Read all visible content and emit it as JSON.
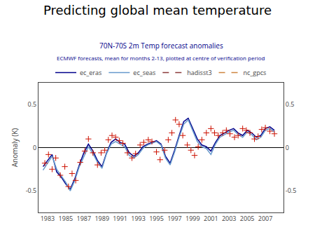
{
  "chart_data": {
    "type": "line",
    "title": "Predicting global mean temperature",
    "subtitle": [
      "70N-70S 2m Temp forecast anomalies",
      "ECMWF forecasts, mean for months 2-13, plotted at centre of verification period"
    ],
    "ylabel": "Anomaly (K)",
    "xlim": [
      1982.0,
      2009.0
    ],
    "xticks": [
      1983,
      1985,
      1987,
      1989,
      1991,
      1993,
      1995,
      1997,
      1999,
      2001,
      2003,
      2005,
      2007
    ],
    "ylim": [
      -0.75,
      0.75
    ],
    "yticks": [
      -0.5,
      0,
      0.5
    ],
    "y2lim": [
      -0.75,
      0.75
    ],
    "y2ticks": [
      -0.5,
      0,
      0.5
    ],
    "grid": false,
    "legend": "top",
    "series": [
      {
        "name": "ec_eras",
        "color": "#00008B",
        "type": "line",
        "line_style": "solid",
        "x": [
          1982.5,
          1983.0,
          1983.5,
          1984.0,
          1984.5,
          1985.0,
          1985.5,
          1986.0,
          1986.5,
          1987.0,
          1987.5,
          1988.0,
          1988.5,
          1989.0,
          1989.5,
          1990.0,
          1990.5,
          1991.0,
          1991.5,
          1992.0,
          1992.5,
          1993.0,
          1993.5,
          1994.0,
          1994.5,
          1995.0,
          1995.5,
          1996.0,
          1996.5,
          1997.0,
          1997.5,
          1998.0,
          1998.5,
          1999.0,
          1999.5,
          2000.0,
          2000.5,
          2001.0,
          2001.5,
          2002.0,
          2002.5,
          2003.0,
          2003.5,
          2004.0,
          2004.5,
          2005.0,
          2005.5,
          2006.0,
          2006.5,
          2007.0,
          2007.5,
          2008.0
        ],
        "values": [
          -0.22,
          -0.15,
          -0.08,
          -0.28,
          -0.34,
          -0.42,
          -0.48,
          -0.36,
          -0.2,
          -0.06,
          0.04,
          -0.04,
          -0.15,
          -0.22,
          -0.06,
          0.06,
          0.1,
          0.06,
          0.04,
          -0.06,
          -0.1,
          -0.06,
          0.01,
          0.04,
          0.06,
          0.08,
          0.04,
          -0.1,
          -0.18,
          -0.03,
          0.14,
          0.3,
          0.34,
          0.22,
          0.1,
          0.03,
          0.01,
          -0.04,
          0.06,
          0.14,
          0.17,
          0.2,
          0.22,
          0.17,
          0.14,
          0.2,
          0.17,
          0.12,
          0.14,
          0.22,
          0.24,
          0.2
        ]
      },
      {
        "name": "ec_seas",
        "color": "#6699CC",
        "type": "line",
        "line_style": "solid",
        "x": [
          1982.5,
          1983.0,
          1983.5,
          1984.0,
          1984.5,
          1985.0,
          1985.5,
          1986.0,
          1986.5,
          1987.0,
          1987.5,
          1988.0,
          1988.5,
          1989.0,
          1989.5,
          1990.0,
          1990.5,
          1991.0,
          1991.5,
          1992.0,
          1992.5,
          1993.0,
          1993.5,
          1994.0,
          1994.5,
          1995.0,
          1995.5,
          1996.0,
          1996.5,
          1997.0,
          1997.5,
          1998.0,
          1998.5,
          1999.0,
          1999.5,
          2000.0,
          2000.5,
          2001.0,
          2001.5,
          2002.0,
          2002.5,
          2003.0,
          2003.5,
          2004.0,
          2004.5,
          2005.0,
          2005.5,
          2006.0,
          2006.5,
          2007.0,
          2007.5,
          2008.0
        ],
        "values": [
          -0.26,
          -0.18,
          -0.1,
          -0.25,
          -0.32,
          -0.4,
          -0.5,
          -0.38,
          -0.22,
          -0.1,
          0.01,
          -0.07,
          -0.17,
          -0.24,
          -0.07,
          0.04,
          0.07,
          0.04,
          0.01,
          -0.09,
          -0.12,
          -0.08,
          -0.01,
          0.03,
          0.05,
          0.07,
          0.03,
          -0.12,
          -0.2,
          -0.05,
          0.12,
          0.27,
          0.32,
          0.2,
          0.07,
          0.01,
          -0.01,
          -0.08,
          0.04,
          0.12,
          0.15,
          0.18,
          0.2,
          0.15,
          0.12,
          0.18,
          0.15,
          0.09,
          0.12,
          0.2,
          0.22,
          0.18
        ]
      },
      {
        "name": "hadisst3",
        "color": "#8B3A3A",
        "type": "line",
        "line_style": "dashed",
        "x": [
          null
        ],
        "values": [
          null
        ]
      },
      {
        "name": "nc_gpcs",
        "color": "#CD853F",
        "type": "line",
        "line_style": "dashed",
        "x": [
          null
        ],
        "values": [
          null
        ]
      },
      {
        "color": "#CC1100",
        "type": "scatter",
        "marker": "plus",
        "x": [
          1982.7,
          1983.1,
          1983.5,
          1983.9,
          1984.4,
          1984.9,
          1985.3,
          1985.7,
          1986.1,
          1986.6,
          1987.1,
          1987.5,
          1988.0,
          1988.5,
          1988.9,
          1989.3,
          1989.7,
          1990.1,
          1990.5,
          1990.9,
          1991.3,
          1991.8,
          1992.3,
          1992.7,
          1993.2,
          1993.6,
          1994.1,
          1994.5,
          1995.0,
          1995.4,
          1995.9,
          1996.3,
          1996.7,
          1997.1,
          1997.5,
          1997.9,
          1998.4,
          1998.8,
          1999.2,
          1999.6,
          2000.0,
          2000.5,
          2001.0,
          2001.4,
          2001.8,
          2002.3,
          2002.7,
          2003.1,
          2003.6,
          2004.0,
          2004.5,
          2004.9,
          2005.3,
          2005.8,
          2006.2,
          2006.6,
          2007.0,
          2007.5,
          2008.0
        ],
        "values": [
          -0.18,
          -0.08,
          -0.25,
          -0.12,
          -0.32,
          -0.22,
          -0.45,
          -0.3,
          -0.38,
          -0.17,
          -0.04,
          0.1,
          -0.06,
          -0.2,
          -0.06,
          -0.03,
          0.09,
          0.14,
          0.12,
          0.08,
          0.05,
          -0.06,
          -0.12,
          -0.07,
          0.03,
          0.06,
          0.09,
          0.07,
          -0.05,
          -0.14,
          -0.03,
          0.09,
          0.17,
          0.32,
          0.27,
          0.14,
          0.03,
          -0.03,
          -0.09,
          0.01,
          0.09,
          0.17,
          0.22,
          0.17,
          0.14,
          0.17,
          0.2,
          0.16,
          0.12,
          0.14,
          0.22,
          0.2,
          0.17,
          0.1,
          0.13,
          0.21,
          0.23,
          0.19,
          0.16
        ]
      }
    ]
  }
}
